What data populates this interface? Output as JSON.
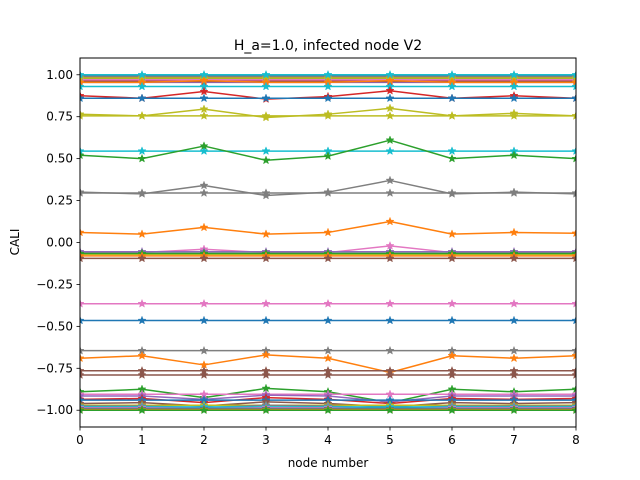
{
  "chart_data": {
    "type": "line",
    "title": "H_a=1.0, infected node V2",
    "xlabel": "node number",
    "ylabel": "CALI",
    "xlim": [
      0,
      8
    ],
    "ylim": [
      -1.1,
      1.1
    ],
    "x": [
      0,
      1,
      2,
      3,
      4,
      5,
      6,
      7,
      8
    ],
    "x_ticks": [
      "0",
      "1",
      "2",
      "3",
      "4",
      "5",
      "6",
      "7",
      "8"
    ],
    "y_ticks": [
      "−1.00",
      "−0.75",
      "−0.50",
      "−0.25",
      "0.00",
      "0.25",
      "0.50",
      "0.75",
      "1.00"
    ],
    "y_tick_values": [
      -1.0,
      -0.75,
      -0.5,
      -0.25,
      0.0,
      0.25,
      0.5,
      0.75,
      1.0
    ],
    "grid": false,
    "marker": "star",
    "series": [
      {
        "color": "#1f77b4",
        "values": [
          0.995,
          0.995,
          0.995,
          0.995,
          0.995,
          0.995,
          0.995,
          0.995,
          0.995
        ]
      },
      {
        "color": "#ff7f0e",
        "values": [
          0.985,
          0.985,
          0.985,
          0.985,
          0.985,
          0.985,
          0.985,
          0.985,
          0.985
        ]
      },
      {
        "color": "#2ca02c",
        "values": [
          0.975,
          0.975,
          0.975,
          0.975,
          0.975,
          0.975,
          0.975,
          0.975,
          0.975
        ]
      },
      {
        "color": "#d62728",
        "values": [
          0.965,
          0.965,
          0.965,
          0.965,
          0.965,
          0.965,
          0.965,
          0.965,
          0.965
        ]
      },
      {
        "color": "#9467bd",
        "values": [
          0.955,
          0.955,
          0.955,
          0.955,
          0.955,
          0.955,
          0.955,
          0.955,
          0.955
        ]
      },
      {
        "color": "#8c564b",
        "values": [
          0.96,
          0.96,
          0.96,
          0.96,
          0.96,
          0.96,
          0.96,
          0.96,
          0.96
        ]
      },
      {
        "color": "#e377c2",
        "values": [
          0.97,
          0.97,
          0.97,
          0.97,
          0.97,
          0.97,
          0.97,
          0.97,
          0.97
        ]
      },
      {
        "color": "#7f7f7f",
        "values": [
          0.99,
          0.99,
          0.99,
          0.99,
          0.99,
          0.99,
          0.99,
          0.99,
          0.99
        ]
      },
      {
        "color": "#bcbd22",
        "values": [
          0.98,
          0.98,
          0.98,
          0.98,
          0.98,
          0.98,
          0.98,
          0.98,
          0.98
        ]
      },
      {
        "color": "#17becf",
        "values": [
          1.0,
          1.0,
          1.0,
          1.0,
          1.0,
          1.0,
          1.0,
          1.0,
          1.0
        ]
      },
      {
        "color": "#ff7f0e",
        "values": [
          0.955,
          0.955,
          0.965,
          0.955,
          0.955,
          0.965,
          0.955,
          0.955,
          0.955
        ]
      },
      {
        "color": "#17becf",
        "values": [
          0.93,
          0.93,
          0.93,
          0.93,
          0.93,
          0.93,
          0.93,
          0.93,
          0.93
        ]
      },
      {
        "color": "#d62728",
        "values": [
          0.875,
          0.86,
          0.9,
          0.855,
          0.87,
          0.905,
          0.86,
          0.875,
          0.86
        ]
      },
      {
        "color": "#1f77b4",
        "values": [
          0.86,
          0.86,
          0.86,
          0.86,
          0.86,
          0.86,
          0.86,
          0.86,
          0.86
        ]
      },
      {
        "color": "#bcbd22",
        "values": [
          0.765,
          0.755,
          0.795,
          0.745,
          0.765,
          0.8,
          0.755,
          0.77,
          0.755
        ]
      },
      {
        "color": "#bcbd22",
        "values": [
          0.755,
          0.755,
          0.755,
          0.755,
          0.755,
          0.755,
          0.755,
          0.755,
          0.755
        ]
      },
      {
        "color": "#17becf",
        "values": [
          0.545,
          0.545,
          0.545,
          0.545,
          0.545,
          0.545,
          0.545,
          0.545,
          0.545
        ]
      },
      {
        "color": "#2ca02c",
        "values": [
          0.52,
          0.5,
          0.575,
          0.49,
          0.515,
          0.61,
          0.5,
          0.52,
          0.5
        ]
      },
      {
        "color": "#7f7f7f",
        "values": [
          0.3,
          0.29,
          0.34,
          0.28,
          0.3,
          0.37,
          0.29,
          0.3,
          0.29
        ]
      },
      {
        "color": "#7f7f7f",
        "values": [
          0.295,
          0.295,
          0.295,
          0.295,
          0.295,
          0.295,
          0.295,
          0.295,
          0.295
        ]
      },
      {
        "color": "#ff7f0e",
        "values": [
          0.06,
          0.05,
          0.09,
          0.05,
          0.06,
          0.125,
          0.05,
          0.06,
          0.055
        ]
      },
      {
        "color": "#e377c2",
        "values": [
          -0.06,
          -0.06,
          -0.04,
          -0.06,
          -0.06,
          -0.02,
          -0.06,
          -0.06,
          -0.06
        ]
      },
      {
        "color": "#9467bd",
        "values": [
          -0.055,
          -0.055,
          -0.055,
          -0.055,
          -0.055,
          -0.055,
          -0.055,
          -0.055,
          -0.055
        ]
      },
      {
        "color": "#bcbd22",
        "values": [
          -0.07,
          -0.07,
          -0.07,
          -0.07,
          -0.07,
          -0.07,
          -0.07,
          -0.07,
          -0.07
        ]
      },
      {
        "color": "#2ca02c",
        "values": [
          -0.065,
          -0.065,
          -0.065,
          -0.065,
          -0.065,
          -0.065,
          -0.065,
          -0.065,
          -0.065
        ]
      },
      {
        "color": "#ff7f0e",
        "values": [
          -0.08,
          -0.08,
          -0.08,
          -0.08,
          -0.08,
          -0.08,
          -0.08,
          -0.08,
          -0.08
        ]
      },
      {
        "color": "#8c564b",
        "values": [
          -0.095,
          -0.095,
          -0.095,
          -0.095,
          -0.095,
          -0.095,
          -0.095,
          -0.095,
          -0.095
        ]
      },
      {
        "color": "#e377c2",
        "values": [
          -0.365,
          -0.365,
          -0.365,
          -0.365,
          -0.365,
          -0.365,
          -0.365,
          -0.365,
          -0.365
        ]
      },
      {
        "color": "#1f77b4",
        "values": [
          -0.465,
          -0.465,
          -0.465,
          -0.465,
          -0.465,
          -0.465,
          -0.465,
          -0.465,
          -0.465
        ]
      },
      {
        "color": "#7f7f7f",
        "values": [
          -0.645,
          -0.645,
          -0.645,
          -0.645,
          -0.645,
          -0.645,
          -0.645,
          -0.645,
          -0.645
        ]
      },
      {
        "color": "#ff7f0e",
        "values": [
          -0.69,
          -0.675,
          -0.73,
          -0.67,
          -0.69,
          -0.775,
          -0.675,
          -0.69,
          -0.675
        ]
      },
      {
        "color": "#8c564b",
        "values": [
          -0.765,
          -0.765,
          -0.765,
          -0.765,
          -0.765,
          -0.765,
          -0.765,
          -0.765,
          -0.765
        ]
      },
      {
        "color": "#8c564b",
        "values": [
          -0.79,
          -0.79,
          -0.79,
          -0.79,
          -0.79,
          -0.79,
          -0.79,
          -0.79,
          -0.79
        ]
      },
      {
        "color": "#2ca02c",
        "values": [
          -0.89,
          -0.875,
          -0.925,
          -0.87,
          -0.89,
          -0.955,
          -0.875,
          -0.89,
          -0.875
        ]
      },
      {
        "color": "#e377c2",
        "values": [
          -0.905,
          -0.905,
          -0.905,
          -0.905,
          -0.905,
          -0.905,
          -0.905,
          -0.905,
          -0.905
        ]
      },
      {
        "color": "#9467bd",
        "values": [
          -0.915,
          -0.915,
          -0.935,
          -0.91,
          -0.915,
          -0.95,
          -0.915,
          -0.915,
          -0.915
        ]
      },
      {
        "color": "#d62728",
        "values": [
          -0.935,
          -0.93,
          -0.955,
          -0.925,
          -0.935,
          -0.96,
          -0.93,
          -0.935,
          -0.93
        ]
      },
      {
        "color": "#1f77b4",
        "values": [
          -0.94,
          -0.94,
          -0.94,
          -0.94,
          -0.94,
          -0.94,
          -0.94,
          -0.94,
          -0.94
        ]
      },
      {
        "color": "#8c564b",
        "values": [
          -0.96,
          -0.955,
          -0.975,
          -0.95,
          -0.96,
          -0.98,
          -0.955,
          -0.96,
          -0.955
        ]
      },
      {
        "color": "#bcbd22",
        "values": [
          -0.97,
          -0.97,
          -0.97,
          -0.97,
          -0.97,
          -0.97,
          -0.97,
          -0.97,
          -0.97
        ]
      },
      {
        "color": "#7f7f7f",
        "values": [
          -0.975,
          -0.975,
          -0.985,
          -0.97,
          -0.975,
          -0.99,
          -0.975,
          -0.975,
          -0.975
        ]
      },
      {
        "color": "#17becf",
        "values": [
          -0.98,
          -0.98,
          -0.98,
          -0.98,
          -0.98,
          -0.98,
          -0.98,
          -0.98,
          -0.98
        ]
      },
      {
        "color": "#e377c2",
        "values": [
          -0.985,
          -0.985,
          -0.99,
          -0.985,
          -0.985,
          -0.995,
          -0.985,
          -0.985,
          -0.985
        ]
      },
      {
        "color": "#1f77b4",
        "values": [
          -0.99,
          -0.99,
          -0.99,
          -0.99,
          -0.99,
          -0.99,
          -0.99,
          -0.99,
          -0.99
        ]
      },
      {
        "color": "#ff7f0e",
        "values": [
          -0.995,
          -0.995,
          -0.995,
          -0.995,
          -0.995,
          -0.995,
          -0.995,
          -0.995,
          -0.995
        ]
      },
      {
        "color": "#2ca02c",
        "values": [
          -1.0,
          -1.0,
          -1.0,
          -1.0,
          -1.0,
          -1.0,
          -1.0,
          -1.0,
          -1.0
        ]
      }
    ]
  }
}
